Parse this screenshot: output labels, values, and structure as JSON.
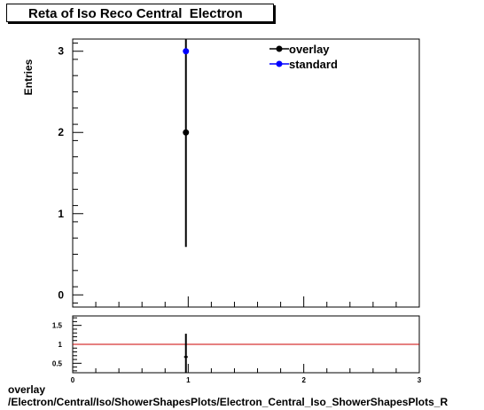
{
  "chart_data": [
    {
      "type": "scatter",
      "title": "Reta of Iso Reco Central  Electron",
      "ylabel": "Entries",
      "xlim": [
        0,
        3
      ],
      "ylim": [
        -0.15,
        3.15
      ],
      "yticks": [
        0,
        1,
        2,
        3
      ],
      "legend_position": "top-right",
      "series": [
        {
          "name": "overlay",
          "color": "#000000",
          "points": [
            {
              "x": 0.98,
              "y": 2,
              "ylow": 0.59,
              "yhigh": 3.15
            }
          ]
        },
        {
          "name": "standard",
          "color": "#0000ff",
          "points": [
            {
              "x": 0.98,
              "y": 3
            }
          ]
        }
      ]
    },
    {
      "type": "scatter",
      "xlim": [
        0,
        3
      ],
      "ylim": [
        0.25,
        1.75
      ],
      "xticks": [
        0,
        1,
        2,
        3
      ],
      "yticks": [
        0.5,
        1,
        1.5
      ],
      "reference_line": {
        "y": 1,
        "color": "#cc0000"
      },
      "points": [
        {
          "x": 0.98,
          "y": 0.667,
          "ylow": 0.25,
          "yhigh": 1.28
        }
      ]
    }
  ],
  "footer": {
    "line1": "overlay",
    "line2": "/Electron/Central/Iso/ShowerShapesPlots/Electron_Central_Iso_ShowerShapesPlots_R"
  }
}
